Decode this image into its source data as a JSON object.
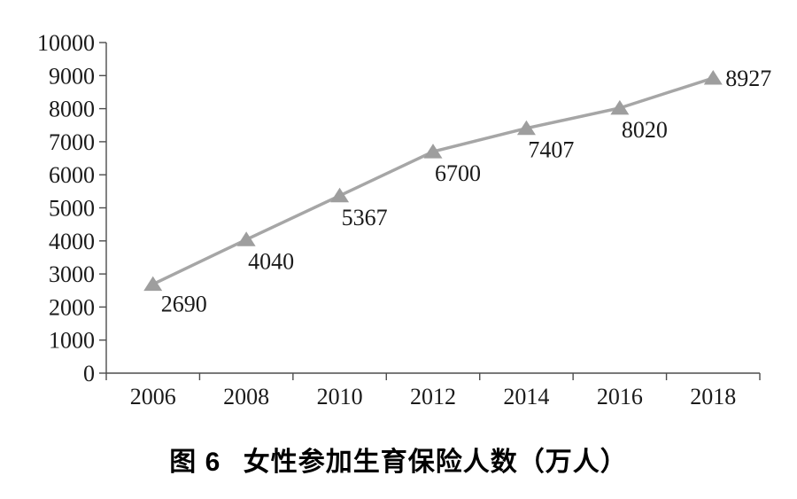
{
  "figure": {
    "caption_prefix": "图 6",
    "caption": "女性参加生育保险人数（万人）"
  },
  "chart_data": {
    "type": "line",
    "title": "图 6 女性参加生育保险人数（万人）",
    "categories": [
      "2006",
      "2008",
      "2010",
      "2012",
      "2014",
      "2016",
      "2018"
    ],
    "series": [
      {
        "name": "女性参加生育保险人数",
        "values": [
          2690,
          4040,
          5367,
          6700,
          7407,
          8020,
          8927
        ]
      }
    ],
    "data_labels": [
      "2690",
      "4040",
      "5367",
      "6700",
      "7407",
      "8020",
      "8927"
    ],
    "xlabel": "",
    "ylabel": "",
    "ylim": [
      0,
      10000
    ],
    "yticks": [
      0,
      1000,
      2000,
      3000,
      4000,
      5000,
      6000,
      7000,
      8000,
      9000,
      10000
    ],
    "grid": "off",
    "legend": "none",
    "marker": "triangle-up",
    "line_color": "#a6a6a6",
    "marker_color": "#9e9e9e",
    "axis_color": "#4d4d4d",
    "text_color": "#1a1a1a",
    "background_color": "#ffffff"
  }
}
